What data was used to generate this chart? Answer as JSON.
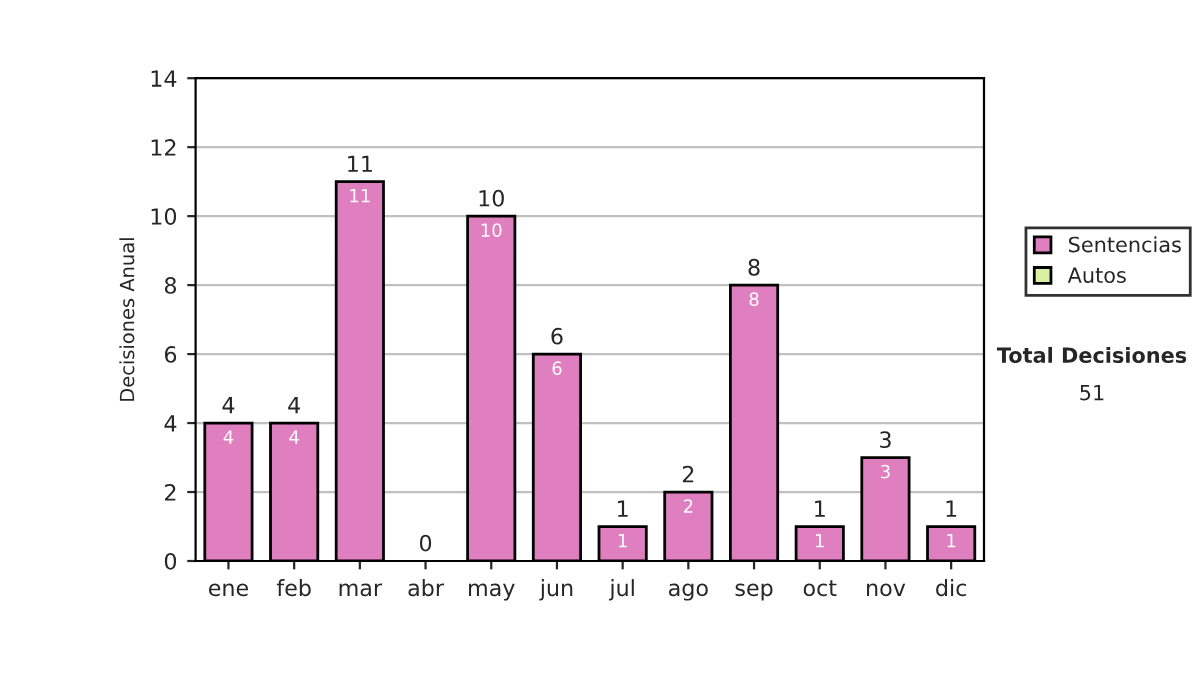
{
  "chart_data": {
    "type": "bar",
    "stacked": true,
    "ylabel": "Decisiones Anual",
    "categories": [
      "ene",
      "feb",
      "mar",
      "abr",
      "may",
      "jun",
      "jul",
      "ago",
      "sep",
      "oct",
      "nov",
      "dic"
    ],
    "series": [
      {
        "name": "Sentencias",
        "color": "#e07fc0",
        "values": [
          4,
          4,
          11,
          0,
          10,
          6,
          1,
          2,
          8,
          1,
          3,
          1
        ],
        "value_labels": [
          "4",
          "4",
          "11",
          null,
          "10",
          "6",
          "1",
          "2",
          "8",
          "1",
          "3",
          "1"
        ]
      },
      {
        "name": "Autos",
        "color": "#d9f0a3",
        "values": [
          0,
          0,
          0,
          0,
          0,
          0,
          0,
          0,
          0,
          0,
          0,
          0
        ]
      }
    ],
    "totals": [
      "4",
      "4",
      "11",
      "0",
      "10",
      "6",
      "1",
      "2",
      "8",
      "1",
      "3",
      "1"
    ],
    "ylim": [
      0,
      14
    ],
    "yticks": [
      0,
      2,
      4,
      6,
      8,
      10,
      12,
      14
    ],
    "grid": "y",
    "legend": "right",
    "annotations": [
      "Total Decisiones",
      "51"
    ]
  }
}
